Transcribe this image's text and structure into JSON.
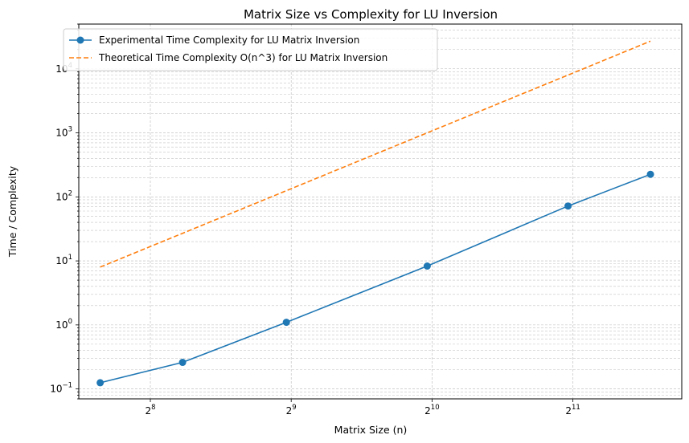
{
  "chart_data": {
    "type": "line",
    "title": "Matrix Size vs Complexity for LU Inversion",
    "xlabel": "Matrix Size (n)",
    "ylabel": "Time / Complexity",
    "xscale": "log2",
    "yscale": "log10",
    "xlim": [
      180,
      3500
    ],
    "ylim": [
      0.07,
      50000
    ],
    "x": [
      200,
      300,
      500,
      1000,
      2000,
      3000
    ],
    "x_ticks": [
      {
        "value": 256,
        "base": "2",
        "exp": "8"
      },
      {
        "value": 512,
        "base": "2",
        "exp": "9"
      },
      {
        "value": 1024,
        "base": "2",
        "exp": "10"
      },
      {
        "value": 2048,
        "base": "2",
        "exp": "11"
      }
    ],
    "y_ticks": [
      {
        "value": 0.1,
        "base": "10",
        "exp": "−1"
      },
      {
        "value": 1,
        "base": "10",
        "exp": "0"
      },
      {
        "value": 10,
        "base": "10",
        "exp": "1"
      },
      {
        "value": 100,
        "base": "10",
        "exp": "2"
      },
      {
        "value": 1000,
        "base": "10",
        "exp": "3"
      },
      {
        "value": 10000,
        "base": "10",
        "exp": "4"
      }
    ],
    "grid": true,
    "legend_position": "top-left",
    "series": [
      {
        "name": "Experimental Time Complexity for LU Matrix Inversion",
        "values": [
          0.125,
          0.26,
          1.1,
          8.3,
          72,
          225
        ],
        "color": "#1f77b4",
        "linestyle": "solid",
        "marker": "circle"
      },
      {
        "name": "Theoretical Time Complexity O(n^3) for LU Matrix Inversion",
        "values": [
          8,
          27,
          125,
          1000,
          8000,
          27000
        ],
        "color": "#ff7f0e",
        "linestyle": "dashed",
        "marker": "none"
      }
    ]
  }
}
